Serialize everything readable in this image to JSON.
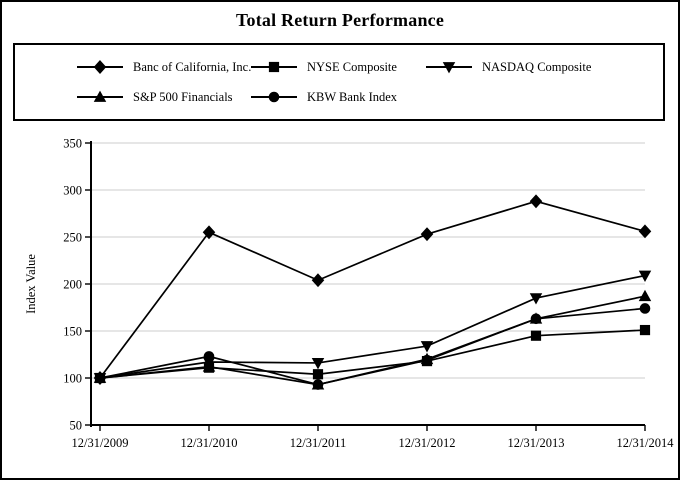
{
  "title": "Total Return Performance",
  "chart_data": {
    "type": "line",
    "x": [
      "12/31/2009",
      "12/31/2010",
      "12/31/2011",
      "12/31/2012",
      "12/31/2013",
      "12/31/2014"
    ],
    "series": [
      {
        "name": "Banc of California, Inc.",
        "marker": "diamond",
        "values": [
          100,
          255,
          204,
          253,
          288,
          256
        ]
      },
      {
        "name": "NYSE Composite",
        "marker": "square",
        "values": [
          100,
          111,
          104,
          118,
          145,
          151
        ]
      },
      {
        "name": "NASDAQ Composite",
        "marker": "triangle-down",
        "values": [
          100,
          117,
          116,
          134,
          185,
          209
        ]
      },
      {
        "name": "S&P 500 Financials",
        "marker": "triangle-up",
        "values": [
          100,
          112,
          93,
          120,
          163,
          187
        ]
      },
      {
        "name": "KBW Bank Index",
        "marker": "circle",
        "values": [
          100,
          123,
          93,
          119,
          163,
          174
        ]
      }
    ],
    "xlabel": "",
    "ylabel": "Index Value",
    "ylim": [
      50,
      350
    ],
    "yticks": [
      50,
      100,
      150,
      200,
      250,
      300,
      350
    ],
    "grid": true,
    "legend_position": "top",
    "line_color": "#000000",
    "grid_color": "#cccccc"
  }
}
